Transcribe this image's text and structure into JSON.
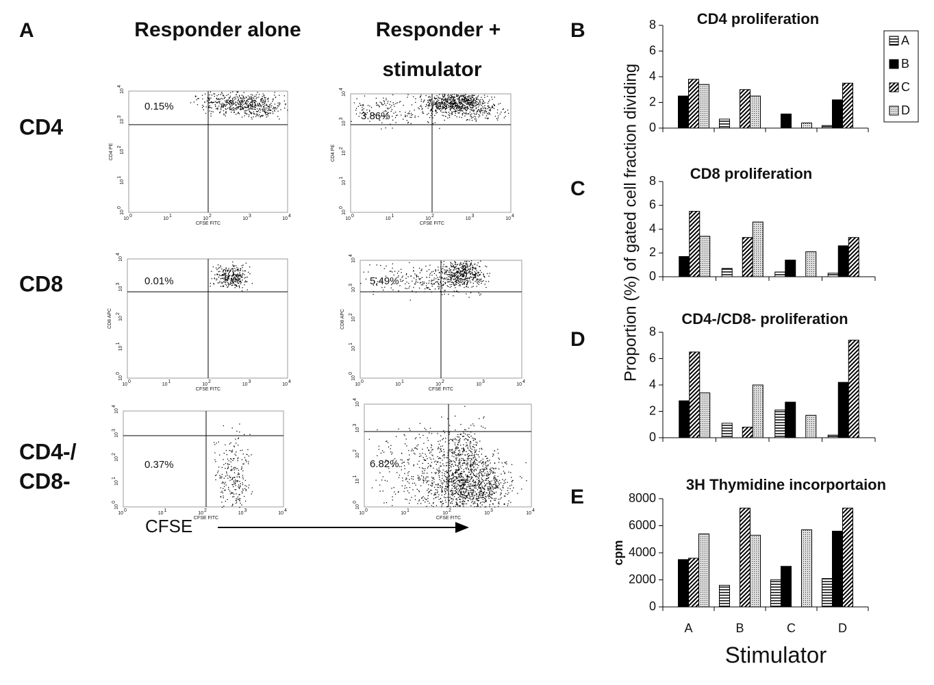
{
  "panel_a": {
    "letter": "A",
    "column_titles": [
      "Responder alone",
      "Responder +",
      "stimulator"
    ],
    "row_labels": [
      "CD4",
      "CD8",
      "CD4-/",
      "CD8-"
    ],
    "percentages": [
      "0.15%",
      "3.86%",
      "0.01%",
      "5.49%",
      "0.37%",
      "6.82%"
    ],
    "y_axis_labels": [
      "CD4 PE",
      "CD4 PE",
      "CD8 APC",
      "CD8 APC"
    ],
    "x_axis_label": "CFSE FITC",
    "tick_base": "10",
    "tick_exponents": [
      "0",
      "1",
      "2",
      "3",
      "4"
    ],
    "arrow_label": "CFSE"
  },
  "shared_y_label": "Proportion (%) of gated cell fraction dividing",
  "chart_data": [
    {
      "type": "bar",
      "panel": "B",
      "title": "CD4 proliferation",
      "legend": "top-right",
      "ylim": [
        0,
        8
      ],
      "yticks": [
        0,
        2,
        4,
        6,
        8
      ],
      "series": [
        {
          "name": "A",
          "pattern": "horizontal",
          "values": [
            null,
            0.7,
            null,
            0.2
          ]
        },
        {
          "name": "B",
          "pattern": "solid",
          "values": [
            2.5,
            null,
            1.1,
            2.2
          ]
        },
        {
          "name": "C",
          "pattern": "diagonal",
          "values": [
            3.8,
            3.0,
            null,
            3.5
          ]
        },
        {
          "name": "D",
          "pattern": "dotted",
          "values": [
            3.4,
            2.5,
            0.4,
            null
          ]
        }
      ]
    },
    {
      "type": "bar",
      "panel": "C",
      "title": "CD8 proliferation",
      "ylim": [
        0,
        8
      ],
      "yticks": [
        0,
        2,
        4,
        6,
        8
      ],
      "series": [
        {
          "name": "A",
          "pattern": "horizontal",
          "values": [
            null,
            0.7,
            0.4,
            0.3
          ]
        },
        {
          "name": "B",
          "pattern": "solid",
          "values": [
            1.7,
            null,
            1.4,
            2.6
          ]
        },
        {
          "name": "C",
          "pattern": "diagonal",
          "values": [
            5.5,
            3.3,
            null,
            3.3
          ]
        },
        {
          "name": "D",
          "pattern": "dotted",
          "values": [
            3.4,
            4.6,
            2.1,
            null
          ]
        }
      ]
    },
    {
      "type": "bar",
      "panel": "D",
      "title": "CD4-/CD8- proliferation",
      "ylim": [
        0,
        8
      ],
      "yticks": [
        0,
        2,
        4,
        6,
        8
      ],
      "series": [
        {
          "name": "A",
          "pattern": "horizontal",
          "values": [
            null,
            1.1,
            2.1,
            0.2
          ]
        },
        {
          "name": "B",
          "pattern": "solid",
          "values": [
            2.8,
            null,
            2.7,
            4.2
          ]
        },
        {
          "name": "C",
          "pattern": "diagonal",
          "values": [
            6.5,
            0.8,
            null,
            7.4
          ]
        },
        {
          "name": "D",
          "pattern": "dotted",
          "values": [
            3.4,
            4.0,
            1.7,
            null
          ]
        }
      ]
    },
    {
      "type": "bar",
      "panel": "E",
      "title": "3H Thymidine incorportaion",
      "y_label": "cpm",
      "x_label": "Stimulator",
      "categories": [
        "A",
        "B",
        "C",
        "D"
      ],
      "ylim": [
        0,
        8000
      ],
      "yticks": [
        0,
        2000,
        4000,
        6000,
        8000
      ],
      "series": [
        {
          "name": "A",
          "pattern": "horizontal",
          "values": [
            null,
            1600,
            2000,
            2100
          ]
        },
        {
          "name": "B",
          "pattern": "solid",
          "values": [
            3500,
            null,
            3000,
            5600
          ]
        },
        {
          "name": "C",
          "pattern": "diagonal",
          "values": [
            3600,
            7300,
            null,
            7300
          ]
        },
        {
          "name": "D",
          "pattern": "dotted",
          "values": [
            5400,
            5300,
            5700,
            null
          ]
        }
      ]
    }
  ]
}
